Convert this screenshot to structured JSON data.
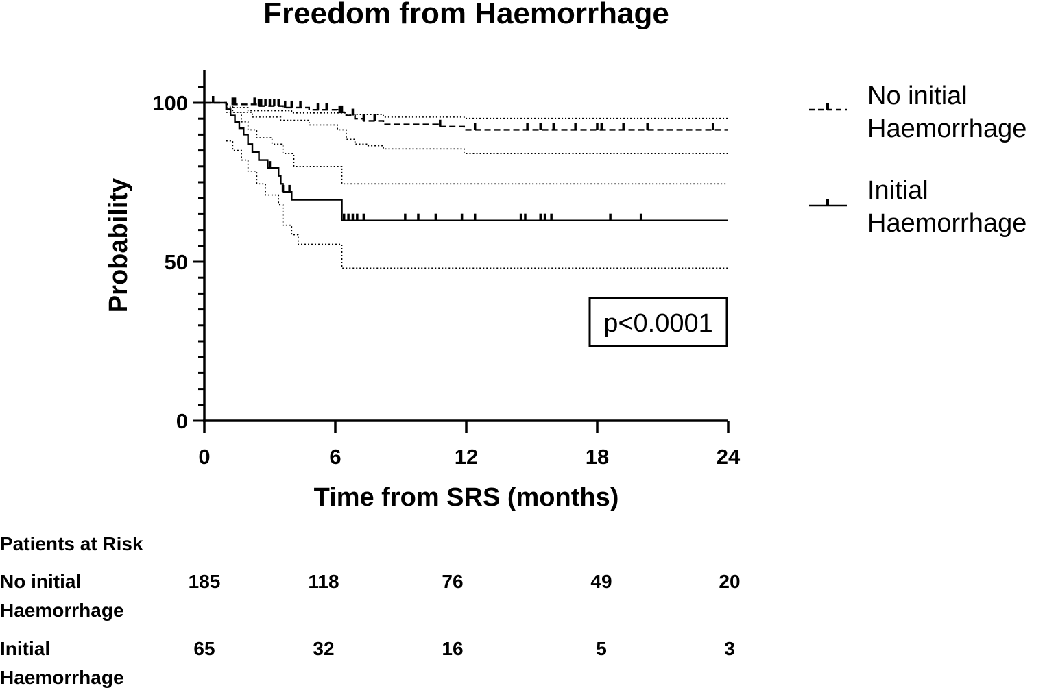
{
  "chart_data": {
    "type": "line",
    "subtype": "kaplan-meier",
    "title": "Freedom from Haemorrhage",
    "xlabel": "Time from SRS (months)",
    "ylabel": "Probability",
    "xlim": [
      0,
      24
    ],
    "ylim": [
      0,
      100
    ],
    "x_ticks": [
      "0",
      "6",
      "12",
      "18",
      "24"
    ],
    "y_ticks": [
      "0",
      "50",
      "100"
    ],
    "annotation": "p<0.0001",
    "grid": false,
    "legend_position": "right",
    "series": [
      {
        "name": "No initial Haemorrhage",
        "name_lines": [
          "No initial",
          "Haemorrhage"
        ],
        "style": "dashed",
        "color": "#000000",
        "steps": [
          [
            0,
            100
          ],
          [
            1.0,
            99.5
          ],
          [
            2.5,
            99.0
          ],
          [
            3.6,
            98.5
          ],
          [
            4.8,
            97.8
          ],
          [
            6.1,
            97.0
          ],
          [
            6.5,
            96.0
          ],
          [
            6.9,
            95.0
          ],
          [
            7.3,
            94.3
          ],
          [
            8.2,
            93.2
          ],
          [
            10.7,
            92.5
          ],
          [
            11.9,
            91.5
          ],
          [
            24,
            91.5
          ]
        ],
        "ci_upper": [
          [
            1,
            98.5
          ],
          [
            2.0,
            97.5
          ],
          [
            4.0,
            96.8
          ],
          [
            6.5,
            96.3
          ],
          [
            8.2,
            95.5
          ],
          [
            11.9,
            95.1
          ],
          [
            24,
            95.1
          ]
        ],
        "ci_lower": [
          [
            1,
            97.0
          ],
          [
            2.2,
            95.5
          ],
          [
            3.5,
            94.5
          ],
          [
            4.8,
            93.0
          ],
          [
            6.1,
            91.5
          ],
          [
            6.5,
            88.5
          ],
          [
            6.9,
            87.0
          ],
          [
            7.5,
            86.5
          ],
          [
            8.2,
            85.5
          ],
          [
            11.9,
            84.0
          ],
          [
            24,
            84.0
          ]
        ],
        "censor_times": [
          0.4,
          1.3,
          1.4,
          2.3,
          2.5,
          2.6,
          2.8,
          3.0,
          3.2,
          3.4,
          3.7,
          4.0,
          4.4,
          5.2,
          5.6,
          6.2,
          6.3,
          6.8,
          7.3,
          7.8,
          10.8,
          12.4,
          14.8,
          15.4,
          16.0,
          17.0,
          18.0,
          18.2,
          19.2,
          20.3,
          23.3
        ]
      },
      {
        "name": "Initial Haemorrhage",
        "name_lines": [
          "Initial",
          "Haemorrhage"
        ],
        "style": "solid",
        "color": "#000000",
        "steps": [
          [
            0,
            100
          ],
          [
            1.0,
            98
          ],
          [
            1.2,
            96
          ],
          [
            1.4,
            94
          ],
          [
            1.6,
            92
          ],
          [
            1.8,
            90
          ],
          [
            2.0,
            87
          ],
          [
            2.2,
            84.5
          ],
          [
            2.5,
            82
          ],
          [
            2.9,
            79.5
          ],
          [
            3.4,
            77
          ],
          [
            3.5,
            74.5
          ],
          [
            3.6,
            72
          ],
          [
            4.0,
            69.5
          ],
          [
            6.3,
            63
          ],
          [
            24,
            63
          ]
        ],
        "ci_upper": [
          [
            1,
            99
          ],
          [
            1.3,
            97
          ],
          [
            1.7,
            94
          ],
          [
            2.0,
            91.5
          ],
          [
            2.4,
            89
          ],
          [
            3.1,
            87
          ],
          [
            3.6,
            84
          ],
          [
            4.1,
            80
          ],
          [
            6.3,
            74.5
          ],
          [
            24,
            74.5
          ]
        ],
        "ci_lower": [
          [
            1,
            88
          ],
          [
            1.3,
            85
          ],
          [
            1.7,
            82
          ],
          [
            2.0,
            78.5
          ],
          [
            2.4,
            74.5
          ],
          [
            2.8,
            71
          ],
          [
            3.4,
            68
          ],
          [
            3.6,
            61.5
          ],
          [
            4.0,
            58.5
          ],
          [
            4.3,
            55.5
          ],
          [
            6.3,
            48
          ],
          [
            24,
            48
          ]
        ],
        "censor_times": [
          3.0,
          3.6,
          3.9,
          6.4,
          6.6,
          6.8,
          7.0,
          7.3,
          9.2,
          9.8,
          10.6,
          11.8,
          12.4,
          14.5,
          14.7,
          15.4,
          15.6,
          15.9,
          18.6,
          20.0
        ]
      }
    ],
    "risk_table": {
      "title": "Patients at Risk",
      "timepoints": [
        0,
        6,
        12,
        18,
        24
      ],
      "rows": [
        {
          "label_lines": [
            "No initial",
            "Haemorrhage"
          ],
          "counts": [
            "185",
            "118",
            "76",
            "49",
            "20"
          ]
        },
        {
          "label_lines": [
            "Initial",
            "Haemorrhage"
          ],
          "counts": [
            "65",
            "32",
            "16",
            "5",
            "3"
          ]
        }
      ]
    }
  }
}
